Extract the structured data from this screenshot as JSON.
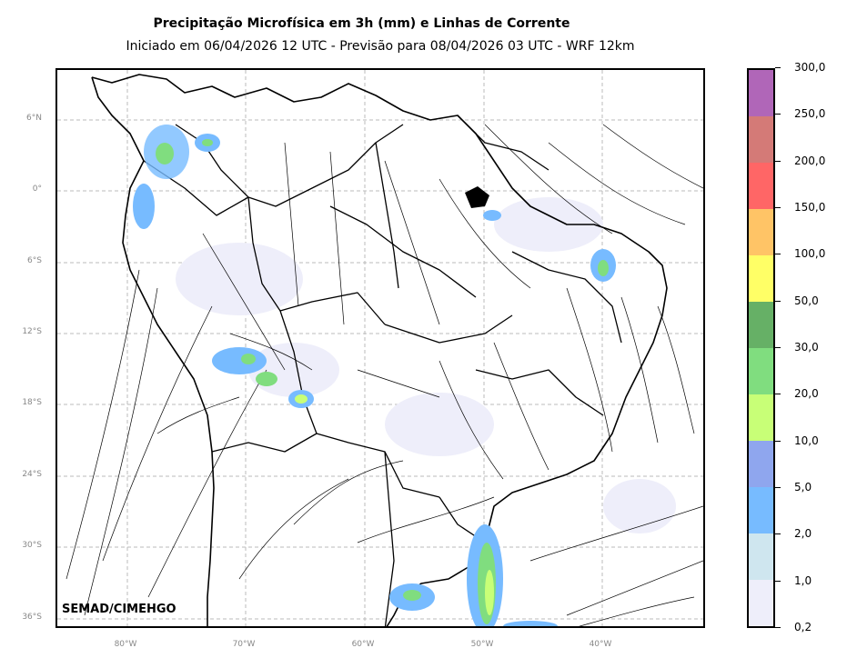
{
  "title": "Precipitação Microfísica em 3h (mm) e Linhas de Corrente",
  "subtitle": "Iniciado em 06/04/2026 12 UTC - Previsão para 08/04/2026 03 UTC - WRF 12km",
  "credit": "SEMAD/CIMEHGO",
  "lat_labels": [
    "6°N",
    "0°",
    "6°S",
    "12°S",
    "18°S",
    "24°S",
    "30°S",
    "36°S"
  ],
  "lon_labels": [
    "80°W",
    "70°W",
    "60°W",
    "50°W",
    "40°W"
  ],
  "colorbar": {
    "labels": [
      "0,2",
      "1,0",
      "2,0",
      "5,0",
      "10,0",
      "20,0",
      "30,0",
      "50,0",
      "100,0",
      "150,0",
      "200,0",
      "250,0",
      "300,0"
    ],
    "colors": [
      "#eeeefa",
      "#cfe6ef",
      "#77bbff",
      "#8fa6ee",
      "#c8ff77",
      "#80dd7f",
      "#66b066",
      "#ffff66",
      "#ffc466",
      "#ff6666",
      "#d47a77",
      "#b066b8"
    ]
  }
}
